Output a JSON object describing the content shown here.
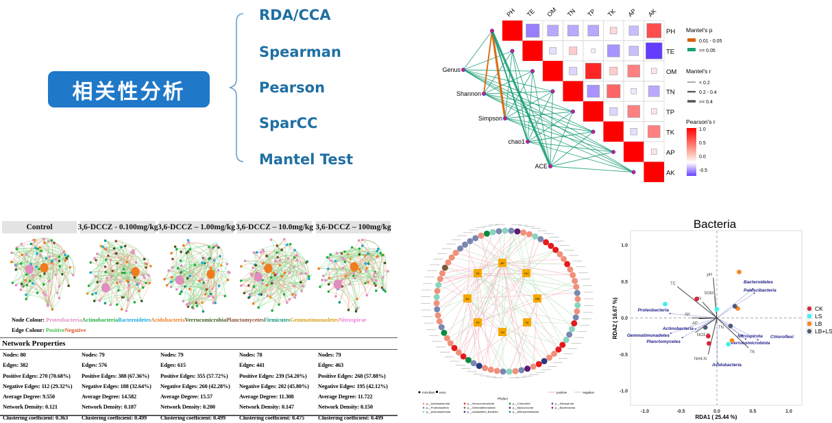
{
  "header": {
    "title": "相关性分析"
  },
  "methods": [
    "RDA/CCA",
    "Spearman",
    "Pearson",
    "SparCC",
    "Mantel Test"
  ],
  "mantel": {
    "variables": [
      "PH",
      "TE",
      "OM",
      "TN",
      "TP",
      "TK",
      "AP",
      "AK"
    ],
    "diversity": [
      "Genus",
      "Shannon",
      "Simpson",
      "chao1",
      "ACE"
    ],
    "legend": {
      "p_title": "Mantel's p",
      "p_items": [
        {
          "label": "0.01 - 0.05",
          "color": "#d95f02"
        },
        {
          "label": ">= 0.05",
          "color": "#1b9e77"
        }
      ],
      "r_title": "Mantel's r",
      "r_items": [
        "< 0.2",
        "0.2 - 0.4",
        ">= 0.4"
      ],
      "pearson_title": "Pearson's r",
      "pearson_ticks": [
        "1.0",
        "0.5",
        "0.0",
        "-0.5"
      ]
    }
  },
  "network_panels": {
    "headers": [
      "Control",
      "3,6-DCCZ - 0.100mg/kg",
      "3,6-DCCZ – 1.00mg/kg",
      "3,6-DCCZ – 10.0mg/kg",
      "3,6-DCCZ – 100mg/kg"
    ],
    "node_colour_label": "Node Colour:",
    "node_colours": [
      {
        "name": "Proteobacteria",
        "color": "#e08dc0"
      },
      {
        "name": "Actinobacteria",
        "color": "#1fae3c"
      },
      {
        "name": "Bacteroidetes",
        "color": "#1aa6de"
      },
      {
        "name": "Acidobacteria",
        "color": "#f07c1e"
      },
      {
        "name": "Verrucomicrobia",
        "color": "#3d5a1e"
      },
      {
        "name": "Planctomycetes",
        "color": "#8a4b2e"
      },
      {
        "name": "Firmicutes",
        "color": "#14957a"
      },
      {
        "name": "Gemmatimonadetes",
        "color": "#d9a01a"
      },
      {
        "name": "Nitrospirae",
        "color": "#ee80d8"
      }
    ],
    "edge_colour_label": "Edge Colour:",
    "edge_colours": [
      {
        "name": "Positive",
        "color": "#3cbf4a"
      },
      {
        "name": "Negative",
        "color": "#e0552a"
      }
    ],
    "properties_title": "Network Properties",
    "properties": [
      [
        "Nodes: 80",
        "Edges: 382",
        "Positive Edges: 270 (70.68%)",
        "Negative Edges: 112 (29.32%)",
        "Average Degree: 9.550",
        "Network Density: 0.121",
        "Clustering coefficient: 0.363"
      ],
      [
        "Nodes: 79",
        "Edges: 576",
        "Positive Edges: 388 (67.36%)",
        "Negative Edges: 188 (32.64%)",
        "Average Degree: 14.582",
        "Network Density: 0.187",
        "Clustering coefficient: 0.499"
      ],
      [
        "Nodes: 79",
        "Edges: 615",
        "Positive Edges: 355 (57.72%)",
        "Negative Edges: 260 (42.28%)",
        "Average Degree: 15.57",
        "Network Density: 0.200",
        "Clustering coefficient: 0.499"
      ],
      [
        "Nodes: 78",
        "Edges: 441",
        "Positive Edges: 239 (54.20%)",
        "Negative Edges: 202 (45.80%)",
        "Average Degree: 11.308",
        "Network Density: 0.147",
        "Clustering coefficient: 0.475"
      ],
      [
        "Nodes: 79",
        "Edges: 463",
        "Positive Edges: 268 (57.88%)",
        "Negative Edges: 195 (42.12%)",
        "Average Degree: 11.722",
        "Network Density: 0.150",
        "Clustering coefficient: 0.499"
      ]
    ]
  },
  "circular_network": {
    "env_nodes": [
      "AP",
      "TE",
      "PH",
      "AK",
      "OM",
      "TP",
      "TK",
      "TN"
    ],
    "shape_legend": [
      "microbes",
      "envs"
    ],
    "edge_legend": [
      {
        "label": "positive",
        "color": "#f4a6b8"
      },
      {
        "label": "negative",
        "color": "#a8dba8"
      }
    ],
    "phylum_title": "Phylum",
    "phyla": [
      {
        "name": "p__Acidobacteriota",
        "color": "#f0907a"
      },
      {
        "name": "p__Proteobacteria",
        "color": "#7a86b0"
      },
      {
        "name": "p__Actinobacteriota",
        "color": "#88d4bf"
      },
      {
        "name": "p__Verrucomicrobiota",
        "color": "#e41a1c"
      },
      {
        "name": "p__Gemmatimonadota",
        "color": "#7a5a3a"
      },
      {
        "name": "p__unclassified_Bacteria",
        "color": "#2a3a80"
      },
      {
        "name": "p__Chloroflexi",
        "color": "#0a8a40"
      },
      {
        "name": "p__Myxococcota",
        "color": "#5a1a70"
      },
      {
        "name": "p__Methylomirabilota",
        "color": "#0a8080"
      },
      {
        "name": "p__Nitrospirota",
        "color": "#4a4a9a"
      },
      {
        "name": "p__Bacteroidota",
        "color": "#a0105a"
      }
    ]
  },
  "chart_data": [
    {
      "type": "heatmap",
      "title": "",
      "variables": [
        "PH",
        "TE",
        "OM",
        "TN",
        "TP",
        "TK",
        "AP",
        "AK"
      ],
      "pearson_r_upper": [
        [
          1.0,
          -0.6,
          -0.4,
          -0.4,
          -0.4,
          0.15,
          -0.3,
          0.7
        ],
        [
          null,
          1.0,
          -0.15,
          0.2,
          0.05,
          -0.5,
          -0.3,
          -0.9
        ],
        [
          null,
          null,
          1.0,
          -0.2,
          0.85,
          0.2,
          0.5,
          0.1
        ],
        [
          null,
          null,
          null,
          1.0,
          -0.5,
          0.6,
          -0.1,
          -0.4
        ],
        [
          null,
          null,
          null,
          null,
          1.0,
          -0.2,
          0.5,
          0.1
        ],
        [
          null,
          null,
          null,
          null,
          null,
          1.0,
          -0.15,
          0.5
        ],
        [
          null,
          null,
          null,
          null,
          null,
          null,
          1.0,
          0.1
        ],
        [
          null,
          null,
          null,
          null,
          null,
          null,
          null,
          1.0
        ]
      ],
      "colorbar_range": [
        -0.6,
        1.0
      ],
      "mantel_links": [
        {
          "from": "Shannon",
          "to": "PH",
          "p": "0.01 - 0.05",
          "r": "0.2 - 0.4"
        },
        {
          "from": "Simpson",
          "to": "PH",
          "p": "0.01 - 0.05",
          "r": ">= 0.4"
        },
        {
          "from": "ACE",
          "to": "PH",
          "p": ">= 0.05",
          "r": ">= 0.4"
        },
        {
          "from": "chao1",
          "to": "PH",
          "p": ">= 0.05",
          "r": "0.2 - 0.4"
        }
      ],
      "legend": "right"
    },
    {
      "type": "scatter",
      "title": "Bacteria",
      "xlabel": "RDA1 ( 25.44 %)",
      "ylabel": "RDA2 ( 16.67 %)",
      "xlim": [
        -1.2,
        1.2
      ],
      "ylim": [
        -1.2,
        1.2
      ],
      "xticks": [
        "-1.0",
        "-0.5",
        "0.0",
        "0.5",
        "1.0"
      ],
      "yticks": [
        "1.0",
        "0.5",
        "0.0",
        "-0.5",
        "-1.0"
      ],
      "legend": "right",
      "series": [
        {
          "name": "CK",
          "color": "#d7263d",
          "points": [
            [
              -0.28,
              0.26
            ],
            [
              -0.12,
              -0.25
            ],
            [
              -0.11,
              -0.35
            ]
          ]
        },
        {
          "name": "LS",
          "color": "#3ff0f0",
          "points": [
            [
              -0.72,
              0.19
            ],
            [
              0.0,
              0.12
            ],
            [
              0.16,
              -0.36
            ]
          ]
        },
        {
          "name": "LB",
          "color": "#f7861f",
          "points": [
            [
              0.31,
              0.63
            ],
            [
              0.29,
              0.13
            ],
            [
              0.21,
              -0.31
            ]
          ]
        },
        {
          "name": "LB+LS",
          "color": "#4f5a78",
          "points": [
            [
              0.25,
              0.16
            ],
            [
              0.19,
              -0.11
            ],
            [
              -0.16,
              -0.13
            ]
          ]
        }
      ],
      "env_arrows": [
        {
          "label": "pH",
          "x": -0.05,
          "y": 0.55
        },
        {
          "label": "TC",
          "x": -0.55,
          "y": 0.43
        },
        {
          "label": "SOM",
          "x": -0.03,
          "y": 0.3
        },
        {
          "label": "CN",
          "x": -0.2,
          "y": 0.22
        },
        {
          "label": "AK",
          "x": -0.35,
          "y": 0.0
        },
        {
          "label": "AP",
          "x": -0.25,
          "y": -0.01
        },
        {
          "label": "TN",
          "x": 0.0,
          "y": -0.07
        },
        {
          "label": "NO3.N",
          "x": -0.3,
          "y": -0.2
        },
        {
          "label": "NH4.N",
          "x": -0.12,
          "y": -0.5
        },
        {
          "label": "TK",
          "x": 0.44,
          "y": -0.41
        }
      ],
      "species_arrows": [
        {
          "label": "Bacteroidetes",
          "x": 0.5,
          "y": 0.4
        },
        {
          "label": "Patescibacteria",
          "x": 0.52,
          "y": 0.34
        },
        {
          "label": "Proteobacteria",
          "x": -0.65,
          "y": 0.06
        },
        {
          "label": "Actinobacteria",
          "x": -0.3,
          "y": -0.15
        },
        {
          "label": "Gemmatimonadetes",
          "x": -0.64,
          "y": -0.21
        },
        {
          "label": "Planctomycetes",
          "x": -0.48,
          "y": -0.27
        },
        {
          "label": "Nitrospirota",
          "x": 0.35,
          "y": -0.24
        },
        {
          "label": "Verrucomicrobiota",
          "x": 0.4,
          "y": -0.29
        },
        {
          "label": "Chloroflexi",
          "x": 0.57,
          "y": -0.3
        },
        {
          "label": "Acidobacteria",
          "x": 0.01,
          "y": -0.62
        }
      ]
    }
  ]
}
